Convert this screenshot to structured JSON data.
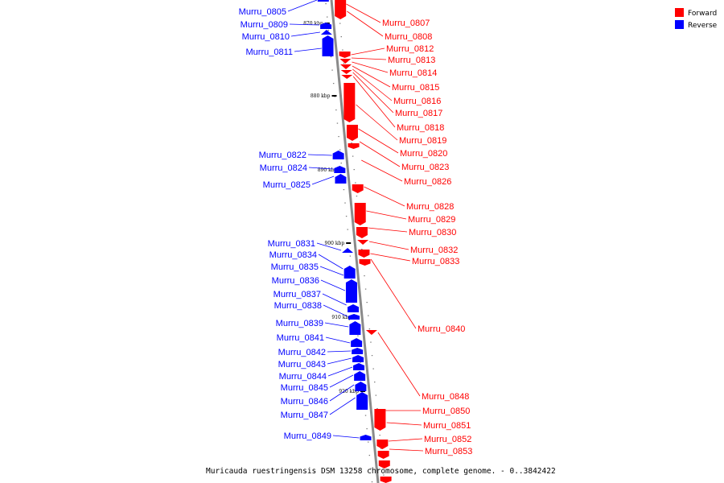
{
  "colors": {
    "forward": "#ff0000",
    "reverse": "#0000ff",
    "backbone": "#8a8a8a",
    "leader_forward": "#ff0000",
    "leader_reverse": "#0000ff"
  },
  "legend": {
    "forward_label": "Forward",
    "reverse_label": "Reverse"
  },
  "caption": "Muricauda ruestringensis DSM 13258 chromosome, complete genome. - 0..3842422",
  "kbp_labels": [
    "870 kbp",
    "880 kbp",
    "890 kbp",
    "900 kbp",
    "910 kbp",
    "920 kbp"
  ],
  "forward_genes": [
    "Murru_0807",
    "Murru_0808",
    "Murru_0812",
    "Murru_0813",
    "Murru_0814",
    "Murru_0815",
    "Murru_0816",
    "Murru_0817",
    "Murru_0818",
    "Murru_0819",
    "Murru_0820",
    "Murru_0823",
    "Murru_0826",
    "Murru_0828",
    "Murru_0829",
    "Murru_0830",
    "Murru_0832",
    "Murru_0833",
    "Murru_0840",
    "Murru_0848",
    "Murru_0850",
    "Murru_0851",
    "Murru_0852",
    "Murru_0853"
  ],
  "reverse_genes": [
    "Murru_0805",
    "Murru_0809",
    "Murru_0810",
    "Murru_0811",
    "Murru_0822",
    "Murru_0824",
    "Murru_0825",
    "Murru_0831",
    "Murru_0834",
    "Murru_0835",
    "Murru_0836",
    "Murru_0837",
    "Murru_0838",
    "Murru_0839",
    "Murru_0841",
    "Murru_0842",
    "Murru_0843",
    "Murru_0844",
    "Murru_0845",
    "Murru_0846",
    "Murru_0847",
    "Murru_0849"
  ]
}
